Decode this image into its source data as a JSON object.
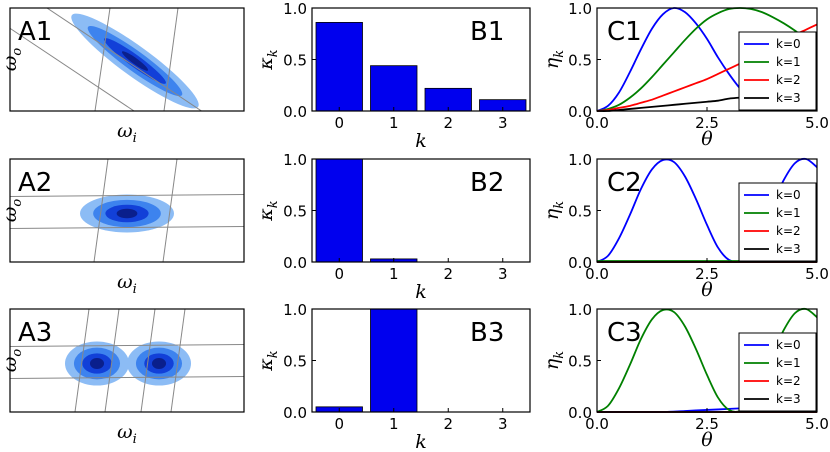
{
  "chart_data": [
    {
      "panel": "A1",
      "type": "contour",
      "xlabel": "ω",
      "xlabel_sub": "i",
      "ylabel": "ω",
      "ylabel_sub": "o",
      "blobs": 1,
      "tilt": "diagonal"
    },
    {
      "panel": "A2",
      "type": "contour",
      "xlabel": "ω",
      "xlabel_sub": "i",
      "ylabel": "ω",
      "ylabel_sub": "o",
      "blobs": 1,
      "tilt": "horizontal"
    },
    {
      "panel": "A3",
      "type": "contour",
      "xlabel": "ω",
      "xlabel_sub": "i",
      "ylabel": "ω",
      "ylabel_sub": "o",
      "blobs": 2,
      "tilt": "horizontal"
    },
    {
      "panel": "B1",
      "type": "bar",
      "categories": [
        "0",
        "1",
        "2",
        "3"
      ],
      "values": [
        0.86,
        0.44,
        0.22,
        0.11
      ],
      "ylim": [
        0,
        1.0
      ],
      "yticks": [
        "0.0",
        "0.5",
        "1.0"
      ],
      "xlabel": "k",
      "ylabel": "κ",
      "ylabel_sub": "k",
      "color": "#0000ee"
    },
    {
      "panel": "B2",
      "type": "bar",
      "categories": [
        "0",
        "1",
        "2",
        "3"
      ],
      "values": [
        1.0,
        0.03,
        0.0,
        0.0
      ],
      "ylim": [
        0,
        1.0
      ],
      "yticks": [
        "0.0",
        "0.5",
        "1.0"
      ],
      "xlabel": "k",
      "ylabel": "κ",
      "ylabel_sub": "k",
      "color": "#0000ee"
    },
    {
      "panel": "B3",
      "type": "bar",
      "categories": [
        "0",
        "1",
        "2",
        "3"
      ],
      "values": [
        0.05,
        1.0,
        0.0,
        0.0
      ],
      "ylim": [
        0,
        1.0
      ],
      "yticks": [
        "0.0",
        "0.5",
        "1.0"
      ],
      "xlabel": "k",
      "ylabel": "κ",
      "ylabel_sub": "k",
      "color": "#0000ee"
    },
    {
      "panel": "C1",
      "type": "line",
      "xlim": [
        0,
        5.0
      ],
      "ylim": [
        0,
        1.0
      ],
      "xticks": [
        "0.0",
        "2.5",
        "5.0"
      ],
      "yticks": [
        "0.0",
        "0.5",
        "1.0"
      ],
      "xlabel": "θ",
      "ylabel": "η",
      "ylabel_sub": "k",
      "legend": "top-right",
      "series": [
        {
          "name": "k=0",
          "color": "#0000ff",
          "x": [
            0,
            0.25,
            0.5,
            0.75,
            1.0,
            1.25,
            1.5,
            1.75,
            2.0,
            2.25,
            2.5,
            2.75,
            3.0,
            3.25,
            3.5,
            3.75,
            4.0,
            4.25,
            4.5,
            4.75,
            5.0
          ],
          "y": [
            0,
            0.05,
            0.18,
            0.38,
            0.6,
            0.8,
            0.94,
            1.0,
            0.96,
            0.85,
            0.7,
            0.52,
            0.36,
            0.22,
            0.12,
            0.06,
            0.05,
            0.1,
            0.2,
            0.32,
            0.46
          ]
        },
        {
          "name": "k=1",
          "color": "#008000",
          "x": [
            0,
            0.25,
            0.5,
            0.75,
            1.0,
            1.25,
            1.5,
            1.75,
            2.0,
            2.25,
            2.5,
            2.75,
            3.0,
            3.25,
            3.5,
            3.75,
            4.0,
            4.25,
            4.5,
            4.75,
            5.0
          ],
          "y": [
            0,
            0.02,
            0.06,
            0.13,
            0.22,
            0.33,
            0.45,
            0.57,
            0.69,
            0.8,
            0.89,
            0.95,
            0.99,
            1.0,
            0.99,
            0.96,
            0.91,
            0.85,
            0.78,
            0.7,
            0.62
          ]
        },
        {
          "name": "k=2",
          "color": "#ff0000",
          "x": [
            0,
            0.25,
            0.5,
            0.75,
            1.0,
            1.25,
            1.5,
            1.75,
            2.0,
            2.25,
            2.5,
            2.75,
            3.0,
            3.25,
            3.5,
            3.75,
            4.0,
            4.25,
            4.5,
            4.75,
            5.0
          ],
          "y": [
            0,
            0.01,
            0.03,
            0.05,
            0.08,
            0.11,
            0.15,
            0.19,
            0.23,
            0.27,
            0.31,
            0.36,
            0.41,
            0.46,
            0.51,
            0.57,
            0.63,
            0.68,
            0.74,
            0.79,
            0.84
          ]
        },
        {
          "name": "k=3",
          "color": "#000000",
          "x": [
            0,
            0.25,
            0.5,
            0.75,
            1.0,
            1.25,
            1.5,
            1.75,
            2.0,
            2.25,
            2.5,
            2.75,
            3.0,
            3.25,
            3.5,
            3.75,
            4.0,
            4.25,
            4.5,
            4.75,
            5.0
          ],
          "y": [
            0,
            0.0,
            0.01,
            0.02,
            0.03,
            0.04,
            0.05,
            0.06,
            0.07,
            0.08,
            0.09,
            0.1,
            0.12,
            0.13,
            0.14,
            0.16,
            0.17,
            0.19,
            0.2,
            0.22,
            0.23
          ]
        }
      ]
    },
    {
      "panel": "C2",
      "type": "line",
      "xlim": [
        0,
        5.0
      ],
      "ylim": [
        0,
        1.0
      ],
      "xticks": [
        "0.0",
        "2.5",
        "5.0"
      ],
      "yticks": [
        "0.0",
        "0.5",
        "1.0"
      ],
      "xlabel": "θ",
      "ylabel": "η",
      "ylabel_sub": "k",
      "legend": "top-right",
      "series": [
        {
          "name": "k=0",
          "color": "#0000ff",
          "x": [
            0,
            0.25,
            0.5,
            0.75,
            1.0,
            1.25,
            1.5,
            1.75,
            2.0,
            2.25,
            2.5,
            2.75,
            3.0,
            3.25,
            3.5,
            3.75,
            4.0,
            4.25,
            4.5,
            4.75,
            5.0
          ],
          "y": [
            0,
            0.06,
            0.23,
            0.46,
            0.71,
            0.9,
            0.99,
            0.97,
            0.83,
            0.61,
            0.36,
            0.14,
            0.02,
            0.01,
            0.11,
            0.32,
            0.57,
            0.8,
            0.96,
            1.0,
            0.92
          ]
        },
        {
          "name": "k=1",
          "color": "#008000",
          "x": [
            0,
            5.0
          ],
          "y": [
            0.01,
            0.01
          ]
        },
        {
          "name": "k=2",
          "color": "#ff0000",
          "x": [
            0,
            5.0
          ],
          "y": [
            0.0,
            0.0
          ]
        },
        {
          "name": "k=3",
          "color": "#000000",
          "x": [
            0,
            5.0
          ],
          "y": [
            0.0,
            0.0
          ]
        }
      ]
    },
    {
      "panel": "C3",
      "type": "line",
      "xlim": [
        0,
        5.0
      ],
      "ylim": [
        0,
        1.0
      ],
      "xticks": [
        "0.0",
        "2.5",
        "5.0"
      ],
      "yticks": [
        "0.0",
        "0.5",
        "1.0"
      ],
      "xlabel": "θ",
      "ylabel": "η",
      "ylabel_sub": "k",
      "legend": "top-right",
      "series": [
        {
          "name": "k=0",
          "color": "#0000ff",
          "x": [
            0,
            0.5,
            1.0,
            1.5,
            2.0,
            2.5,
            3.0,
            3.5,
            4.0,
            4.5,
            5.0
          ],
          "y": [
            0,
            0.0,
            0.0,
            0.0,
            0.01,
            0.02,
            0.03,
            0.04,
            0.05,
            0.06,
            0.07
          ]
        },
        {
          "name": "k=1",
          "color": "#008000",
          "x": [
            0,
            0.25,
            0.5,
            0.75,
            1.0,
            1.25,
            1.5,
            1.75,
            2.0,
            2.25,
            2.5,
            2.75,
            3.0,
            3.25,
            3.5,
            3.75,
            4.0,
            4.25,
            4.5,
            4.75,
            5.0
          ],
          "y": [
            0,
            0.06,
            0.23,
            0.46,
            0.71,
            0.9,
            0.99,
            0.97,
            0.83,
            0.61,
            0.36,
            0.14,
            0.02,
            0.01,
            0.11,
            0.32,
            0.57,
            0.8,
            0.96,
            1.0,
            0.92
          ]
        },
        {
          "name": "k=2",
          "color": "#ff0000",
          "x": [
            0,
            5.0
          ],
          "y": [
            0.0,
            0.0
          ]
        },
        {
          "name": "k=3",
          "color": "#000000",
          "x": [
            0,
            5.0
          ],
          "y": [
            0.0,
            0.0
          ]
        }
      ]
    }
  ]
}
